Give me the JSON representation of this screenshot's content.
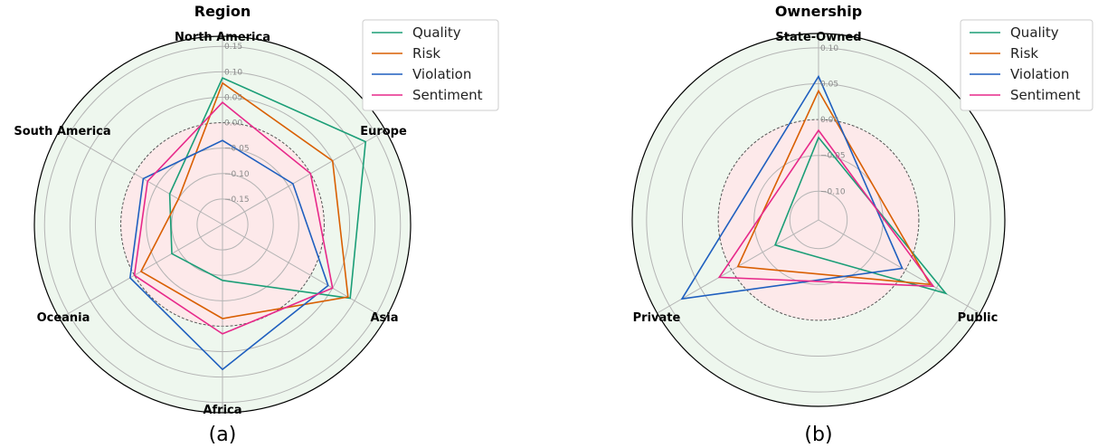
{
  "chart_data": [
    {
      "type": "radar",
      "title": "Region",
      "panel_label": "(a)",
      "axes": [
        "North America",
        "Europe",
        "Asia",
        "Africa",
        "Oceania",
        "South America"
      ],
      "rlim": [
        -0.2,
        0.17
      ],
      "rticks": [
        -0.15,
        -0.1,
        -0.05,
        0.0,
        0.05,
        0.1,
        0.15
      ],
      "rtick_labels": [
        "−0.15",
        "−0.10",
        "−0.05",
        "0.00",
        "0.05",
        "0.10",
        "0.15"
      ],
      "baseline": 0.0,
      "series": [
        {
          "name": "Quality",
          "color": "#1b9e77",
          "values": [
            0.088,
            0.125,
            0.09,
            -0.09,
            -0.085,
            -0.08
          ]
        },
        {
          "name": "Risk",
          "color": "#d95f02",
          "values": [
            0.078,
            0.05,
            0.085,
            -0.015,
            -0.015,
            -0.1
          ]
        },
        {
          "name": "Violation",
          "color": "#1f5fbf",
          "values": [
            -0.035,
            -0.04,
            0.04,
            0.085,
            0.01,
            -0.02
          ]
        },
        {
          "name": "Sentiment",
          "color": "#e7298a",
          "values": [
            0.04,
            0.0,
            0.05,
            0.015,
            0.0,
            -0.03
          ]
        }
      ]
    },
    {
      "type": "radar",
      "title": "Ownership",
      "panel_label": "(b)",
      "axes": [
        "State-Owned",
        "Public",
        "Private"
      ],
      "rlim": [
        -0.14,
        0.12
      ],
      "rticks": [
        -0.1,
        -0.05,
        0.0,
        0.05,
        0.1
      ],
      "rtick_labels": [
        "−0.10",
        "−0.05",
        "0.00",
        "0.05",
        "0.10"
      ],
      "baseline": 0.0,
      "series": [
        {
          "name": "Quality",
          "color": "#1b9e77",
          "values": [
            -0.025,
            0.065,
            -0.07
          ]
        },
        {
          "name": "Risk",
          "color": "#d95f02",
          "values": [
            0.04,
            0.04,
            -0.01
          ]
        },
        {
          "name": "Violation",
          "color": "#1f5fbf",
          "values": [
            0.06,
            -0.005,
            0.08
          ]
        },
        {
          "name": "Sentiment",
          "color": "#e7298a",
          "values": [
            -0.015,
            0.045,
            0.02
          ]
        }
      ]
    }
  ]
}
